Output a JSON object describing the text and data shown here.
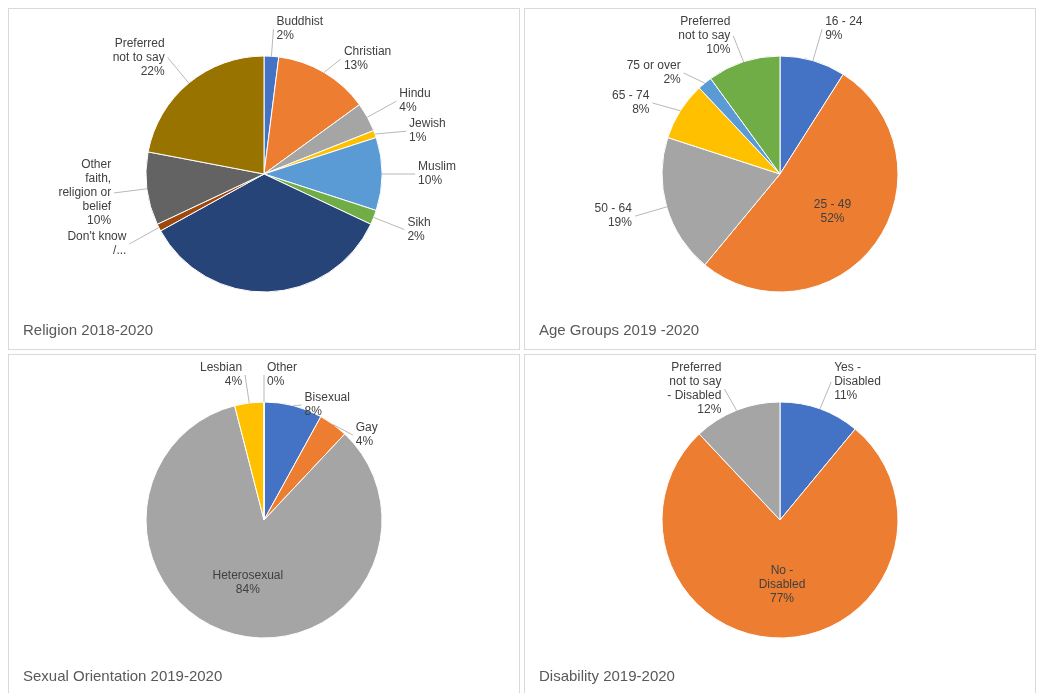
{
  "chart_data": [
    {
      "type": "pie",
      "title": "Religion 2018-2020",
      "categories": [
        "Buddhist",
        "Christian",
        "Hindu",
        "Jewish",
        "Muslim",
        "Sikh",
        null,
        "Don't know /...",
        "Other faith, religion or belief",
        "Preferred not to say"
      ],
      "values": [
        2,
        13,
        4,
        1,
        10,
        2,
        35,
        1,
        10,
        22
      ],
      "value_labels": [
        "2%",
        "13%",
        "4%",
        "1%",
        "10%",
        "2%",
        null,
        null,
        "10%",
        "22%"
      ],
      "colors": [
        "#4472c4",
        "#ed7d31",
        "#a5a5a5",
        "#ffc000",
        "#5b9bd5",
        "#70ad47",
        "#264478",
        "#9e480e",
        "#636363",
        "#997300"
      ]
    },
    {
      "type": "pie",
      "title": "Age Groups 2019 -2020",
      "categories": [
        "16 - 24",
        "25 - 49",
        "50 - 64",
        "65 - 74",
        "75 or over",
        "Preferred not to say"
      ],
      "values": [
        9,
        52,
        19,
        8,
        2,
        10
      ],
      "value_labels": [
        "9%",
        "52%",
        "19%",
        "8%",
        "2%",
        "10%"
      ],
      "colors": [
        "#4472c4",
        "#ed7d31",
        "#a5a5a5",
        "#ffc000",
        "#5b9bd5",
        "#70ad47"
      ]
    },
    {
      "type": "pie",
      "title": "Sexual Orientation 2019-2020",
      "categories": [
        "Bisexual",
        "Gay",
        "Heterosexual",
        "Lesbian",
        "Other"
      ],
      "values": [
        8,
        4,
        84,
        4,
        0
      ],
      "value_labels": [
        "8%",
        "4%",
        "84%",
        "4%",
        "0%"
      ],
      "colors": [
        "#4472c4",
        "#ed7d31",
        "#a5a5a5",
        "#ffc000",
        "#5b9bd5"
      ]
    },
    {
      "type": "pie",
      "title": "Disability 2019-2020",
      "categories": [
        "Yes - Disabled",
        "No - Disabled",
        "Preferred not to say - Disabled"
      ],
      "values": [
        11,
        77,
        12
      ],
      "value_labels": [
        "11%",
        "77%",
        "12%"
      ],
      "colors": [
        "#4472c4",
        "#ed7d31",
        "#a5a5a5"
      ]
    }
  ]
}
